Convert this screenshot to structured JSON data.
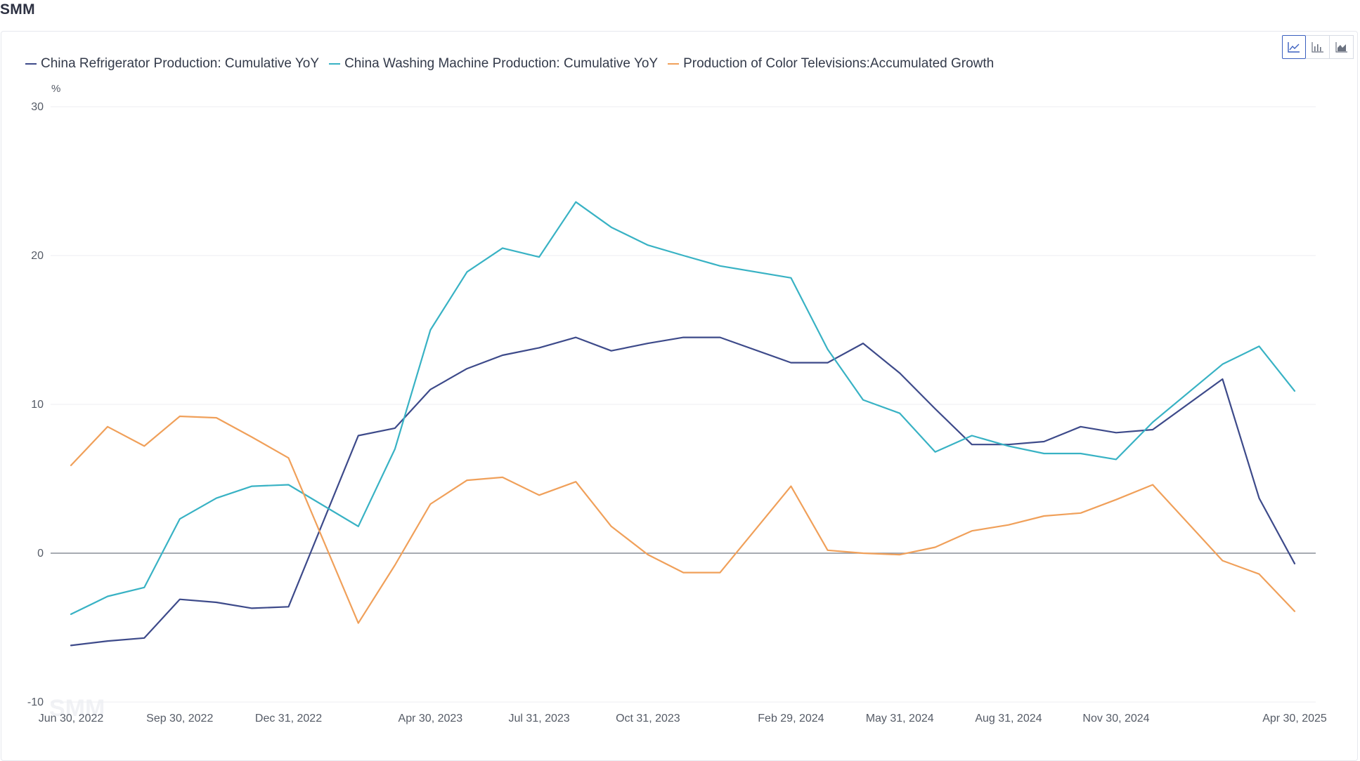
{
  "brand": "SMM",
  "toolbar": {
    "buttons": [
      {
        "icon": "line-chart-icon",
        "active": true
      },
      {
        "icon": "bar-chart-icon",
        "active": false
      },
      {
        "icon": "area-chart-icon",
        "active": false
      }
    ],
    "accent": "#3a5fbf"
  },
  "watermark": "SMM",
  "chart_data": {
    "type": "line",
    "unit": "%",
    "ylim": [
      -10,
      30
    ],
    "yticks": [
      -10,
      0,
      10,
      20,
      30
    ],
    "grid": true,
    "legend_position": "top-left",
    "x": [
      "2022-06-30",
      "2022-07-31",
      "2022-08-31",
      "2022-09-30",
      "2022-10-31",
      "2022-11-30",
      "2022-12-31",
      "2023-01-31",
      "2023-02-28",
      "2023-03-31",
      "2023-04-30",
      "2023-05-31",
      "2023-06-30",
      "2023-07-31",
      "2023-08-31",
      "2023-09-30",
      "2023-10-31",
      "2023-11-30",
      "2023-12-31",
      "2024-01-31",
      "2024-02-29",
      "2024-03-31",
      "2024-04-30",
      "2024-05-31",
      "2024-06-30",
      "2024-07-31",
      "2024-08-31",
      "2024-09-30",
      "2024-10-31",
      "2024-11-30",
      "2024-12-31",
      "2025-01-31",
      "2025-02-28",
      "2025-03-31",
      "2025-04-30"
    ],
    "xtick_labels": [
      {
        "date": "2022-06-30",
        "label": "Jun 30, 2022"
      },
      {
        "date": "2022-09-30",
        "label": "Sep 30, 2022"
      },
      {
        "date": "2022-12-31",
        "label": "Dec 31, 2022"
      },
      {
        "date": "2023-04-30",
        "label": "Apr 30, 2023"
      },
      {
        "date": "2023-07-31",
        "label": "Jul 31, 2023"
      },
      {
        "date": "2023-10-31",
        "label": "Oct 31, 2023"
      },
      {
        "date": "2024-02-29",
        "label": "Feb 29, 2024"
      },
      {
        "date": "2024-05-31",
        "label": "May 31, 2024"
      },
      {
        "date": "2024-08-31",
        "label": "Aug 31, 2024"
      },
      {
        "date": "2024-11-30",
        "label": "Nov 30, 2024"
      },
      {
        "date": "2025-04-30",
        "label": "Apr 30, 2025"
      }
    ],
    "series": [
      {
        "name": "China Refrigerator Production: Cumulative YoY",
        "color": "#3d4a8a",
        "points": [
          {
            "x": "2022-06-30",
            "y": -6.2
          },
          {
            "x": "2022-07-31",
            "y": -5.9
          },
          {
            "x": "2022-08-31",
            "y": -5.7
          },
          {
            "x": "2022-09-30",
            "y": -3.1
          },
          {
            "x": "2022-10-31",
            "y": -3.3
          },
          {
            "x": "2022-11-30",
            "y": -3.7
          },
          {
            "x": "2022-12-31",
            "y": -3.6
          },
          {
            "x": "2023-02-28",
            "y": 7.9
          },
          {
            "x": "2023-03-31",
            "y": 8.4
          },
          {
            "x": "2023-04-30",
            "y": 11.0
          },
          {
            "x": "2023-05-31",
            "y": 12.4
          },
          {
            "x": "2023-06-30",
            "y": 13.3
          },
          {
            "x": "2023-07-31",
            "y": 13.8
          },
          {
            "x": "2023-08-31",
            "y": 14.5
          },
          {
            "x": "2023-09-30",
            "y": 13.6
          },
          {
            "x": "2023-10-31",
            "y": 14.1
          },
          {
            "x": "2023-11-30",
            "y": 14.5
          },
          {
            "x": "2023-12-31",
            "y": 14.5
          },
          {
            "x": "2024-02-29",
            "y": 12.8
          },
          {
            "x": "2024-03-31",
            "y": 12.8
          },
          {
            "x": "2024-04-30",
            "y": 14.1
          },
          {
            "x": "2024-05-31",
            "y": 12.1
          },
          {
            "x": "2024-06-30",
            "y": 9.7
          },
          {
            "x": "2024-07-31",
            "y": 7.3
          },
          {
            "x": "2024-08-31",
            "y": 7.3
          },
          {
            "x": "2024-09-30",
            "y": 7.5
          },
          {
            "x": "2024-10-31",
            "y": 8.5
          },
          {
            "x": "2024-11-30",
            "y": 8.1
          },
          {
            "x": "2024-12-31",
            "y": 8.3
          },
          {
            "x": "2025-02-28",
            "y": 11.7
          },
          {
            "x": "2025-03-31",
            "y": 3.7
          },
          {
            "x": "2025-04-30",
            "y": -0.7
          }
        ]
      },
      {
        "name": "China Washing Machine Production: Cumulative YoY",
        "color": "#38b2c4",
        "points": [
          {
            "x": "2022-06-30",
            "y": -4.1
          },
          {
            "x": "2022-07-31",
            "y": -2.9
          },
          {
            "x": "2022-08-31",
            "y": -2.3
          },
          {
            "x": "2022-09-30",
            "y": 2.3
          },
          {
            "x": "2022-10-31",
            "y": 3.7
          },
          {
            "x": "2022-11-30",
            "y": 4.5
          },
          {
            "x": "2022-12-31",
            "y": 4.6
          },
          {
            "x": "2023-02-28",
            "y": 1.8
          },
          {
            "x": "2023-03-31",
            "y": 7.0
          },
          {
            "x": "2023-04-30",
            "y": 15.0
          },
          {
            "x": "2023-05-31",
            "y": 18.9
          },
          {
            "x": "2023-06-30",
            "y": 20.5
          },
          {
            "x": "2023-07-31",
            "y": 19.9
          },
          {
            "x": "2023-08-31",
            "y": 23.6
          },
          {
            "x": "2023-09-30",
            "y": 21.9
          },
          {
            "x": "2023-10-31",
            "y": 20.7
          },
          {
            "x": "2023-11-30",
            "y": 20.0
          },
          {
            "x": "2023-12-31",
            "y": 19.3
          },
          {
            "x": "2024-02-29",
            "y": 18.5
          },
          {
            "x": "2024-03-31",
            "y": 13.7
          },
          {
            "x": "2024-04-30",
            "y": 10.3
          },
          {
            "x": "2024-05-31",
            "y": 9.4
          },
          {
            "x": "2024-06-30",
            "y": 6.8
          },
          {
            "x": "2024-07-31",
            "y": 7.9
          },
          {
            "x": "2024-08-31",
            "y": 7.2
          },
          {
            "x": "2024-09-30",
            "y": 6.7
          },
          {
            "x": "2024-10-31",
            "y": 6.7
          },
          {
            "x": "2024-11-30",
            "y": 6.3
          },
          {
            "x": "2024-12-31",
            "y": 8.8
          },
          {
            "x": "2025-02-28",
            "y": 12.7
          },
          {
            "x": "2025-03-31",
            "y": 13.9
          },
          {
            "x": "2025-04-30",
            "y": 10.9
          }
        ]
      },
      {
        "name": "Production of Color Televisions:Accumulated Growth",
        "color": "#f0a05a",
        "points": [
          {
            "x": "2022-06-30",
            "y": 5.9
          },
          {
            "x": "2022-07-31",
            "y": 8.5
          },
          {
            "x": "2022-08-31",
            "y": 7.2
          },
          {
            "x": "2022-09-30",
            "y": 9.2
          },
          {
            "x": "2022-10-31",
            "y": 9.1
          },
          {
            "x": "2022-11-30",
            "y": 7.8
          },
          {
            "x": "2022-12-31",
            "y": 6.4
          },
          {
            "x": "2023-02-28",
            "y": -4.7
          },
          {
            "x": "2023-03-31",
            "y": -0.8
          },
          {
            "x": "2023-04-30",
            "y": 3.3
          },
          {
            "x": "2023-05-31",
            "y": 4.9
          },
          {
            "x": "2023-06-30",
            "y": 5.1
          },
          {
            "x": "2023-07-31",
            "y": 3.9
          },
          {
            "x": "2023-08-31",
            "y": 4.8
          },
          {
            "x": "2023-09-30",
            "y": 1.8
          },
          {
            "x": "2023-10-31",
            "y": -0.1
          },
          {
            "x": "2023-11-30",
            "y": -1.3
          },
          {
            "x": "2023-12-31",
            "y": -1.3
          },
          {
            "x": "2024-02-29",
            "y": 4.5
          },
          {
            "x": "2024-03-31",
            "y": 0.2
          },
          {
            "x": "2024-04-30",
            "y": 0.0
          },
          {
            "x": "2024-05-31",
            "y": -0.1
          },
          {
            "x": "2024-06-30",
            "y": 0.4
          },
          {
            "x": "2024-07-31",
            "y": 1.5
          },
          {
            "x": "2024-08-31",
            "y": 1.9
          },
          {
            "x": "2024-09-30",
            "y": 2.5
          },
          {
            "x": "2024-10-31",
            "y": 2.7
          },
          {
            "x": "2024-11-30",
            "y": 3.6
          },
          {
            "x": "2024-12-31",
            "y": 4.6
          },
          {
            "x": "2025-02-28",
            "y": -0.5
          },
          {
            "x": "2025-03-31",
            "y": -1.4
          },
          {
            "x": "2025-04-30",
            "y": -3.9
          }
        ]
      }
    ]
  }
}
